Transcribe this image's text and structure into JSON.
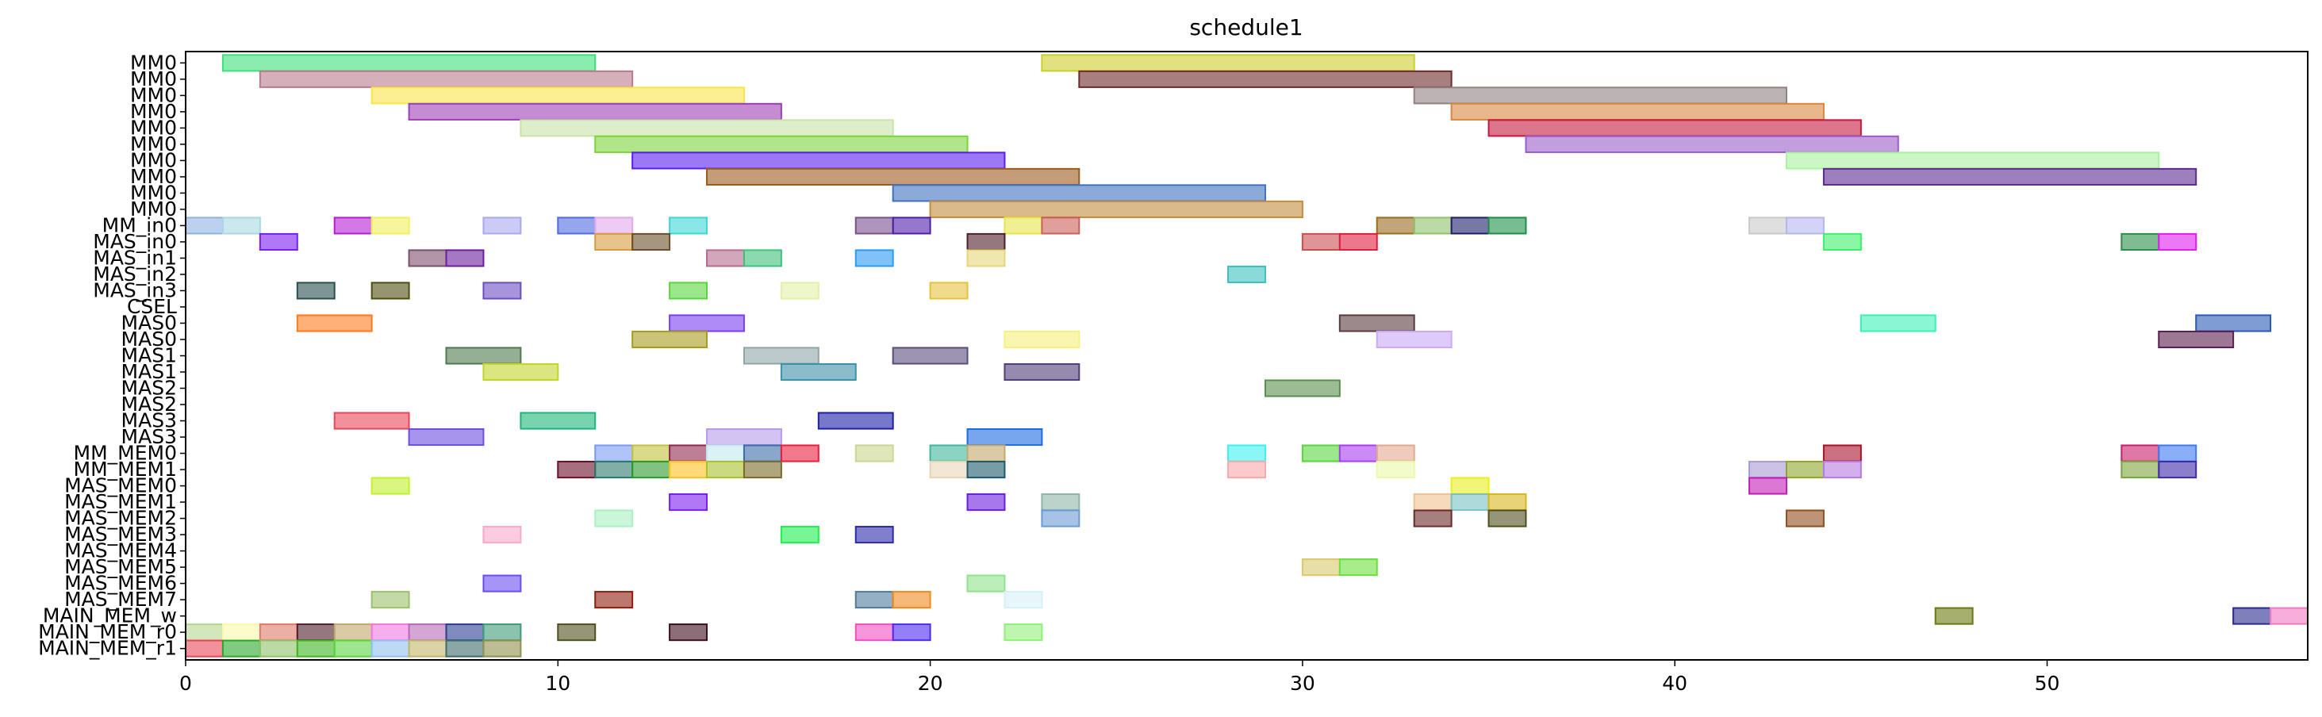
{
  "chart_data": {
    "type": "gantt",
    "title": "schedule1",
    "xlabel": "",
    "ylabel": "",
    "xlim": [
      0,
      57
    ],
    "xticks": [
      0,
      10,
      20,
      30,
      40,
      50
    ],
    "grid": false,
    "legend": "none",
    "rows": [
      "MM0",
      "MM0",
      "MM0",
      "MM0",
      "MM0",
      "MM0",
      "MM0",
      "MM0",
      "MM0",
      "MM0",
      "MM_in0",
      "MAS_in0",
      "MAS_in1",
      "MAS_in2",
      "MAS_in3",
      "CSEL",
      "MAS0",
      "MAS0",
      "MAS1",
      "MAS1",
      "MAS2",
      "MAS2",
      "MAS3",
      "MAS3",
      "MM_MEM0",
      "MM_MEM1",
      "MAS_MEM0",
      "MAS_MEM1",
      "MAS_MEM2",
      "MAS_MEM3",
      "MAS_MEM4",
      "MAS_MEM5",
      "MAS_MEM6",
      "MAS_MEM7",
      "MAIN_MEM_w",
      "MAIN_MEM_r0",
      "MAIN_MEM_r1"
    ],
    "tasks": [
      {
        "row": 0,
        "start": 1,
        "end": 11,
        "color": "#3ee07a"
      },
      {
        "row": 0,
        "start": 23,
        "end": 33,
        "color": "#c9cf2a"
      },
      {
        "row": 1,
        "start": 2,
        "end": 12,
        "color": "#b97a8a"
      },
      {
        "row": 1,
        "start": 24,
        "end": 34,
        "color": "#6e2a2a"
      },
      {
        "row": 2,
        "start": 5,
        "end": 15,
        "color": "#f9e54a"
      },
      {
        "row": 2,
        "start": 33,
        "end": 43,
        "color": "#8f8282"
      },
      {
        "row": 3,
        "start": 6,
        "end": 16,
        "color": "#9e3eb5"
      },
      {
        "row": 3,
        "start": 34,
        "end": 44,
        "color": "#d9873e"
      },
      {
        "row": 4,
        "start": 9,
        "end": 19,
        "color": "#c9e3a6"
      },
      {
        "row": 4,
        "start": 35,
        "end": 45,
        "color": "#c4183e"
      },
      {
        "row": 5,
        "start": 11,
        "end": 21,
        "color": "#7bd63a"
      },
      {
        "row": 5,
        "start": 36,
        "end": 46,
        "color": "#9b5ec9"
      },
      {
        "row": 6,
        "start": 12,
        "end": 22,
        "color": "#5a1ef0"
      },
      {
        "row": 6,
        "start": 43,
        "end": 53,
        "color": "#a9f29e"
      },
      {
        "row": 7,
        "start": 14,
        "end": 24,
        "color": "#9b5a1e"
      },
      {
        "row": 7,
        "start": 44,
        "end": 54,
        "color": "#5a2a8f"
      },
      {
        "row": 8,
        "start": 19,
        "end": 29,
        "color": "#3f71bf"
      },
      {
        "row": 9,
        "start": 20,
        "end": 30,
        "color": "#c28c3e"
      },
      {
        "row": 10,
        "start": 0,
        "end": 1,
        "color": "#8fb2e3"
      },
      {
        "row": 10,
        "start": 1,
        "end": 2,
        "color": "#a6d9e3"
      },
      {
        "row": 10,
        "start": 4,
        "end": 5,
        "color": "#b51ed6"
      },
      {
        "row": 10,
        "start": 5,
        "end": 6,
        "color": "#f0f05a"
      },
      {
        "row": 10,
        "start": 8,
        "end": 9,
        "color": "#a9a9f0"
      },
      {
        "row": 10,
        "start": 10,
        "end": 11,
        "color": "#4f6be0"
      },
      {
        "row": 10,
        "start": 11,
        "end": 12,
        "color": "#e3a9e9"
      },
      {
        "row": 10,
        "start": 13,
        "end": 14,
        "color": "#3ed6d6"
      },
      {
        "row": 10,
        "start": 18,
        "end": 19,
        "color": "#7a4f8f"
      },
      {
        "row": 10,
        "start": 19,
        "end": 20,
        "color": "#4f1ea9"
      },
      {
        "row": 10,
        "start": 22,
        "end": 23,
        "color": "#e6e64a"
      },
      {
        "row": 10,
        "start": 23,
        "end": 24,
        "color": "#c9605a"
      },
      {
        "row": 10,
        "start": 32,
        "end": 33,
        "color": "#9b6b1e"
      },
      {
        "row": 10,
        "start": 33,
        "end": 34,
        "color": "#8fc26b"
      },
      {
        "row": 10,
        "start": 34,
        "end": 35,
        "color": "#1e1e6b"
      },
      {
        "row": 10,
        "start": 35,
        "end": 36,
        "color": "#1e8f4a"
      },
      {
        "row": 10,
        "start": 42,
        "end": 43,
        "color": "#c9c9c9"
      },
      {
        "row": 10,
        "start": 43,
        "end": 44,
        "color": "#b5b5f0"
      },
      {
        "row": 11,
        "start": 2,
        "end": 3,
        "color": "#7a1ef0"
      },
      {
        "row": 11,
        "start": 11,
        "end": 12,
        "color": "#d99b3e"
      },
      {
        "row": 11,
        "start": 12,
        "end": 13,
        "color": "#6b4f2a"
      },
      {
        "row": 11,
        "start": 21,
        "end": 22,
        "color": "#4f1e2a"
      },
      {
        "row": 11,
        "start": 30,
        "end": 31,
        "color": "#c94f4f"
      },
      {
        "row": 11,
        "start": 31,
        "end": 32,
        "color": "#e01e3e"
      },
      {
        "row": 11,
        "start": 44,
        "end": 45,
        "color": "#3ef06b"
      },
      {
        "row": 11,
        "start": 52,
        "end": 53,
        "color": "#2a8f4a"
      },
      {
        "row": 11,
        "start": 53,
        "end": 54,
        "color": "#e01ef0"
      },
      {
        "row": 12,
        "start": 6,
        "end": 7,
        "color": "#7a4f6b"
      },
      {
        "row": 12,
        "start": 7,
        "end": 8,
        "color": "#6b1e9b"
      },
      {
        "row": 12,
        "start": 14,
        "end": 15,
        "color": "#b56b8f"
      },
      {
        "row": 12,
        "start": 15,
        "end": 16,
        "color": "#3ec27a"
      },
      {
        "row": 12,
        "start": 18,
        "end": 19,
        "color": "#2a9bf0"
      },
      {
        "row": 12,
        "start": 21,
        "end": 22,
        "color": "#e6d67a"
      },
      {
        "row": 13,
        "start": 28,
        "end": 29,
        "color": "#3ebfbf"
      },
      {
        "row": 14,
        "start": 3,
        "end": 4,
        "color": "#2a4f4f"
      },
      {
        "row": 14,
        "start": 5,
        "end": 6,
        "color": "#4f4f0f"
      },
      {
        "row": 14,
        "start": 8,
        "end": 9,
        "color": "#6b4fc2"
      },
      {
        "row": 14,
        "start": 13,
        "end": 14,
        "color": "#5ad63e"
      },
      {
        "row": 14,
        "start": 16,
        "end": 17,
        "color": "#e3f0a9"
      },
      {
        "row": 14,
        "start": 20,
        "end": 21,
        "color": "#e6c23e"
      },
      {
        "row": 16,
        "start": 3,
        "end": 5,
        "color": "#ff7a1e"
      },
      {
        "row": 16,
        "start": 13,
        "end": 15,
        "color": "#7a3ef0"
      },
      {
        "row": 16,
        "start": 31,
        "end": 33,
        "color": "#5a3a3e"
      },
      {
        "row": 16,
        "start": 45,
        "end": 47,
        "color": "#3ef0b5"
      },
      {
        "row": 16,
        "start": 54,
        "end": 56,
        "color": "#2a5ab5"
      },
      {
        "row": 17,
        "start": 12,
        "end": 14,
        "color": "#a69b1e"
      },
      {
        "row": 17,
        "start": 22,
        "end": 24,
        "color": "#f9f07a"
      },
      {
        "row": 17,
        "start": 32,
        "end": 34,
        "color": "#c9a9f9"
      },
      {
        "row": 17,
        "start": 53,
        "end": 55,
        "color": "#5a1e4f"
      },
      {
        "row": 18,
        "start": 7,
        "end": 9,
        "color": "#4f7a4f"
      },
      {
        "row": 18,
        "start": 15,
        "end": 17,
        "color": "#8fa6a6"
      },
      {
        "row": 18,
        "start": 19,
        "end": 21,
        "color": "#5a4f7a"
      },
      {
        "row": 19,
        "start": 8,
        "end": 10,
        "color": "#c2d62a"
      },
      {
        "row": 19,
        "start": 16,
        "end": 18,
        "color": "#3e8fa9"
      },
      {
        "row": 19,
        "start": 22,
        "end": 24,
        "color": "#4f3e7a"
      },
      {
        "row": 20,
        "start": 29,
        "end": 31,
        "color": "#5a8f4f"
      },
      {
        "row": 22,
        "start": 4,
        "end": 6,
        "color": "#e9465a"
      },
      {
        "row": 22,
        "start": 9,
        "end": 11,
        "color": "#1eb57a"
      },
      {
        "row": 22,
        "start": 17,
        "end": 19,
        "color": "#1e1ea9"
      },
      {
        "row": 23,
        "start": 6,
        "end": 8,
        "color": "#6b4fe0"
      },
      {
        "row": 23,
        "start": 14,
        "end": 16,
        "color": "#b59be9"
      },
      {
        "row": 23,
        "start": 21,
        "end": 23,
        "color": "#1e6be0"
      },
      {
        "row": 24,
        "start": 11,
        "end": 12,
        "color": "#7a9bf0"
      },
      {
        "row": 24,
        "start": 12,
        "end": 13,
        "color": "#c2c23e"
      },
      {
        "row": 24,
        "start": 13,
        "end": 14,
        "color": "#8f2a4f"
      },
      {
        "row": 24,
        "start": 14,
        "end": 15,
        "color": "#c2e9f0"
      },
      {
        "row": 24,
        "start": 15,
        "end": 16,
        "color": "#3e6ba9"
      },
      {
        "row": 24,
        "start": 16,
        "end": 17,
        "color": "#e91e3e"
      },
      {
        "row": 24,
        "start": 18,
        "end": 19,
        "color": "#c9d68f"
      },
      {
        "row": 24,
        "start": 20,
        "end": 21,
        "color": "#3eb59b"
      },
      {
        "row": 24,
        "start": 21,
        "end": 22,
        "color": "#c2a96b"
      },
      {
        "row": 24,
        "start": 28,
        "end": 29,
        "color": "#3ef0f0"
      },
      {
        "row": 24,
        "start": 30,
        "end": 31,
        "color": "#5ad63e"
      },
      {
        "row": 24,
        "start": 31,
        "end": 32,
        "color": "#a93ef0"
      },
      {
        "row": 24,
        "start": 32,
        "end": 33,
        "color": "#e3a98f"
      },
      {
        "row": 24,
        "start": 44,
        "end": 45,
        "color": "#a9102a"
      },
      {
        "row": 24,
        "start": 52,
        "end": 53,
        "color": "#c91e6b"
      },
      {
        "row": 24,
        "start": 53,
        "end": 54,
        "color": "#3e7af0"
      },
      {
        "row": 25,
        "start": 10,
        "end": 11,
        "color": "#6b0f2a"
      },
      {
        "row": 25,
        "start": 11,
        "end": 12,
        "color": "#2a7a6b"
      },
      {
        "row": 25,
        "start": 12,
        "end": 13,
        "color": "#2a9b2a"
      },
      {
        "row": 25,
        "start": 13,
        "end": 14,
        "color": "#ffc21e"
      },
      {
        "row": 25,
        "start": 14,
        "end": 15,
        "color": "#a9c22a"
      },
      {
        "row": 25,
        "start": 15,
        "end": 16,
        "color": "#7a6b2a"
      },
      {
        "row": 25,
        "start": 20,
        "end": 21,
        "color": "#e6d6b5"
      },
      {
        "row": 25,
        "start": 21,
        "end": 22,
        "color": "#1e5a6b"
      },
      {
        "row": 25,
        "start": 28,
        "end": 29,
        "color": "#f9a9a9"
      },
      {
        "row": 25,
        "start": 32,
        "end": 33,
        "color": "#e9f9a9"
      },
      {
        "row": 25,
        "start": 42,
        "end": 43,
        "color": "#a99bd6"
      },
      {
        "row": 25,
        "start": 43,
        "end": 44,
        "color": "#8fa62a"
      },
      {
        "row": 25,
        "start": 44,
        "end": 45,
        "color": "#b57ae0"
      },
      {
        "row": 25,
        "start": 52,
        "end": 53,
        "color": "#7aa63e"
      },
      {
        "row": 25,
        "start": 53,
        "end": 54,
        "color": "#3e2aa9"
      },
      {
        "row": 26,
        "start": 5,
        "end": 6,
        "color": "#c2f02a"
      },
      {
        "row": 26,
        "start": 34,
        "end": 35,
        "color": "#e9f01e"
      },
      {
        "row": 26,
        "start": 42,
        "end": 43,
        "color": "#c21eb5"
      },
      {
        "row": 27,
        "start": 13,
        "end": 14,
        "color": "#7a1ef0"
      },
      {
        "row": 27,
        "start": 21,
        "end": 22,
        "color": "#6b1ee0"
      },
      {
        "row": 27,
        "start": 23,
        "end": 24,
        "color": "#8fb5a9"
      },
      {
        "row": 27,
        "start": 33,
        "end": 34,
        "color": "#f0c28f"
      },
      {
        "row": 27,
        "start": 34,
        "end": 35,
        "color": "#7ac2c2"
      },
      {
        "row": 27,
        "start": 35,
        "end": 36,
        "color": "#d9b51e"
      },
      {
        "row": 28,
        "start": 11,
        "end": 12,
        "color": "#a9f0c2"
      },
      {
        "row": 28,
        "start": 23,
        "end": 24,
        "color": "#6b9bd6"
      },
      {
        "row": 28,
        "start": 33,
        "end": 34,
        "color": "#6b2a2a"
      },
      {
        "row": 28,
        "start": 35,
        "end": 36,
        "color": "#4f4f1e"
      },
      {
        "row": 28,
        "start": 43,
        "end": 44,
        "color": "#8f4f1e"
      },
      {
        "row": 29,
        "start": 8,
        "end": 9,
        "color": "#f9a9c9"
      },
      {
        "row": 29,
        "start": 16,
        "end": 17,
        "color": "#1ef04f"
      },
      {
        "row": 29,
        "start": 18,
        "end": 19,
        "color": "#2a2aa9"
      },
      {
        "row": 31,
        "start": 30,
        "end": 31,
        "color": "#d9c96b"
      },
      {
        "row": 31,
        "start": 31,
        "end": 32,
        "color": "#6be03e"
      },
      {
        "row": 32,
        "start": 8,
        "end": 9,
        "color": "#6b4ff0"
      },
      {
        "row": 32,
        "start": 21,
        "end": 22,
        "color": "#8fe38f"
      },
      {
        "row": 33,
        "start": 5,
        "end": 6,
        "color": "#9bc26b"
      },
      {
        "row": 33,
        "start": 11,
        "end": 12,
        "color": "#8f1e0f"
      },
      {
        "row": 33,
        "start": 18,
        "end": 19,
        "color": "#4f7a9b"
      },
      {
        "row": 33,
        "start": 19,
        "end": 20,
        "color": "#f0891e"
      },
      {
        "row": 33,
        "start": 22,
        "end": 23,
        "color": "#d6f0f9"
      },
      {
        "row": 34,
        "start": 47,
        "end": 48,
        "color": "#6b7a0f"
      },
      {
        "row": 34,
        "start": 55,
        "end": 56,
        "color": "#2a2a8f"
      },
      {
        "row": 34,
        "start": 56,
        "end": 57,
        "color": "#f07ac2"
      },
      {
        "row": 35,
        "start": 0,
        "end": 1,
        "color": "#b5d68f"
      },
      {
        "row": 35,
        "start": 1,
        "end": 2,
        "color": "#f9f9a9"
      },
      {
        "row": 35,
        "start": 2,
        "end": 3,
        "color": "#e07a6b"
      },
      {
        "row": 35,
        "start": 3,
        "end": 4,
        "color": "#4f1e2a"
      },
      {
        "row": 35,
        "start": 4,
        "end": 5,
        "color": "#c2a96b"
      },
      {
        "row": 35,
        "start": 5,
        "end": 6,
        "color": "#f07ae0"
      },
      {
        "row": 35,
        "start": 6,
        "end": 7,
        "color": "#b56bb5"
      },
      {
        "row": 35,
        "start": 7,
        "end": 8,
        "color": "#2a3e8f"
      },
      {
        "row": 35,
        "start": 8,
        "end": 9,
        "color": "#3e9b7a"
      },
      {
        "row": 35,
        "start": 10,
        "end": 11,
        "color": "#4f4f1e"
      },
      {
        "row": 35,
        "start": 13,
        "end": 14,
        "color": "#3e0f1e"
      },
      {
        "row": 35,
        "start": 18,
        "end": 19,
        "color": "#f04fc2"
      },
      {
        "row": 35,
        "start": 19,
        "end": 20,
        "color": "#4f2af0"
      },
      {
        "row": 35,
        "start": 22,
        "end": 23,
        "color": "#8ff07a"
      },
      {
        "row": 36,
        "start": 0,
        "end": 1,
        "color": "#e9465a"
      },
      {
        "row": 36,
        "start": 1,
        "end": 2,
        "color": "#2aa92a"
      },
      {
        "row": 36,
        "start": 2,
        "end": 3,
        "color": "#8fc26b"
      },
      {
        "row": 36,
        "start": 3,
        "end": 4,
        "color": "#3eb51e"
      },
      {
        "row": 36,
        "start": 4,
        "end": 5,
        "color": "#5ad63e"
      },
      {
        "row": 36,
        "start": 5,
        "end": 6,
        "color": "#8fc2f0"
      },
      {
        "row": 36,
        "start": 6,
        "end": 7,
        "color": "#c2b56b"
      },
      {
        "row": 36,
        "start": 7,
        "end": 8,
        "color": "#3e6b6b"
      },
      {
        "row": 36,
        "start": 8,
        "end": 9,
        "color": "#8f8f4f"
      }
    ]
  }
}
